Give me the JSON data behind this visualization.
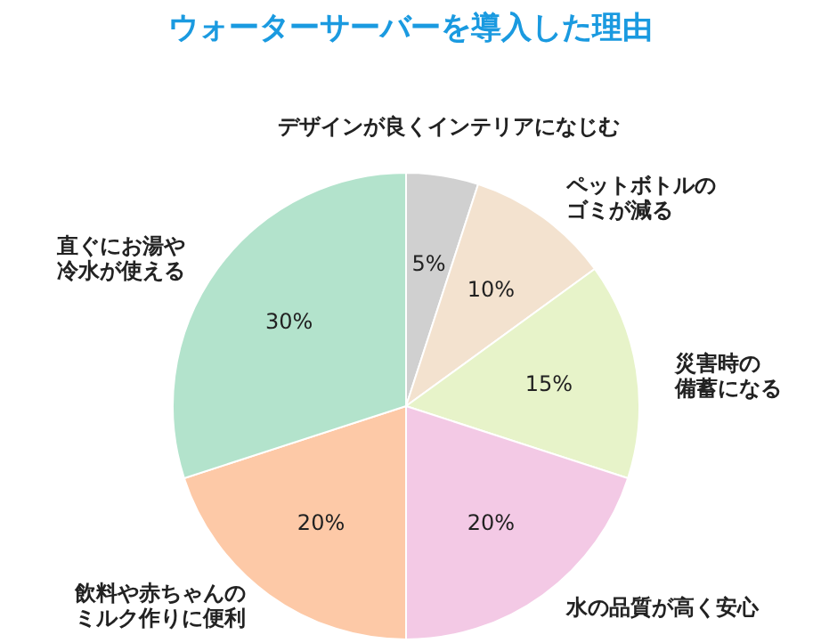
{
  "chart_data": {
    "type": "pie",
    "title": "ウォーターサーバーを導入した理由",
    "categories": [
      "デザインが良くインテリアになじむ",
      "ペットボトルのゴミが減る",
      "災害時の備蓄になる",
      "水の品質が高く安心",
      "飲料や赤ちゃんのミルク作りに便利",
      "直ぐにお湯や冷水が使える"
    ],
    "values": [
      5,
      10,
      15,
      20,
      20,
      30
    ],
    "value_labels": [
      "5%",
      "10%",
      "15%",
      "20%",
      "20%",
      "30%"
    ],
    "colors": [
      "#d0d0d0",
      "#f3e2cf",
      "#e7f3c9",
      "#f3c9e5",
      "#fdc9a7",
      "#b3e3cc"
    ]
  }
}
